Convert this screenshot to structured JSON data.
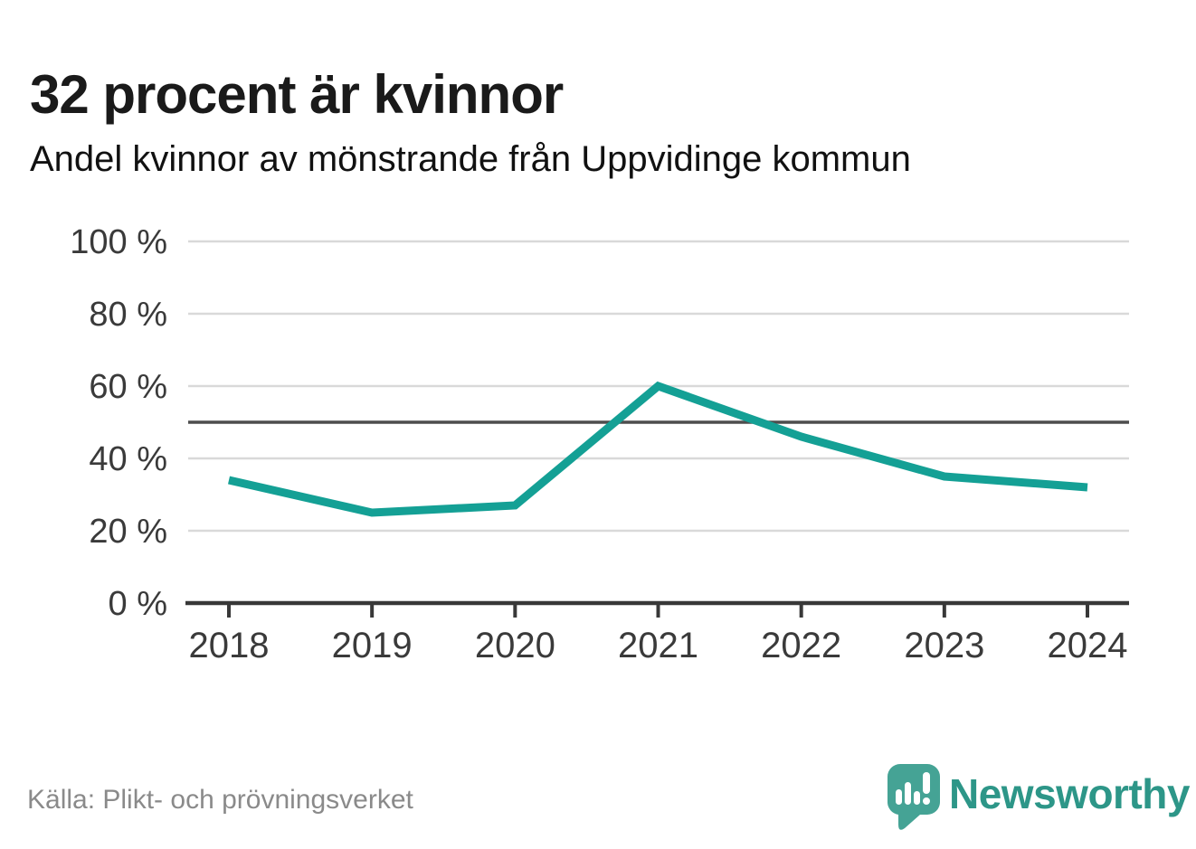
{
  "header": {
    "title": "32 procent är kvinnor",
    "subtitle": "Andel kvinnor av mönstrande från Uppvidinge kommun"
  },
  "footer": {
    "source": "Källa: Plikt- och prövningsverket",
    "brand_name": "Newsworthy"
  },
  "colors": {
    "line": "#14a095",
    "grid": "#d9d9d9",
    "reference_line": "#4d4d4d",
    "axis": "#383838",
    "tick_label": "#3a3a3a",
    "logo_bubble": "#46a success",
    "logo": "#45a395",
    "wordmark": "#2d9688"
  },
  "chart_data": {
    "type": "line",
    "title": "32 procent är kvinnor",
    "subtitle": "Andel kvinnor av mönstrande från Uppvidinge kommun",
    "x": [
      "2018",
      "2019",
      "2020",
      "2021",
      "2022",
      "2023",
      "2024"
    ],
    "series": [
      {
        "name": "Andel kvinnor av mönstrande",
        "values": [
          34,
          25,
          27,
          60,
          46,
          35,
          32
        ]
      }
    ],
    "unit": "%",
    "ylim": [
      0,
      100
    ],
    "yticks": [
      0,
      20,
      40,
      60,
      80,
      100
    ],
    "yticklabels": [
      "0 %",
      "20 %",
      "40 %",
      "60 %",
      "80 %",
      "100 %"
    ],
    "reference_line": 50,
    "grid": true,
    "legend_position": "none",
    "source": "Källa: Plikt- och prövningsverket"
  }
}
